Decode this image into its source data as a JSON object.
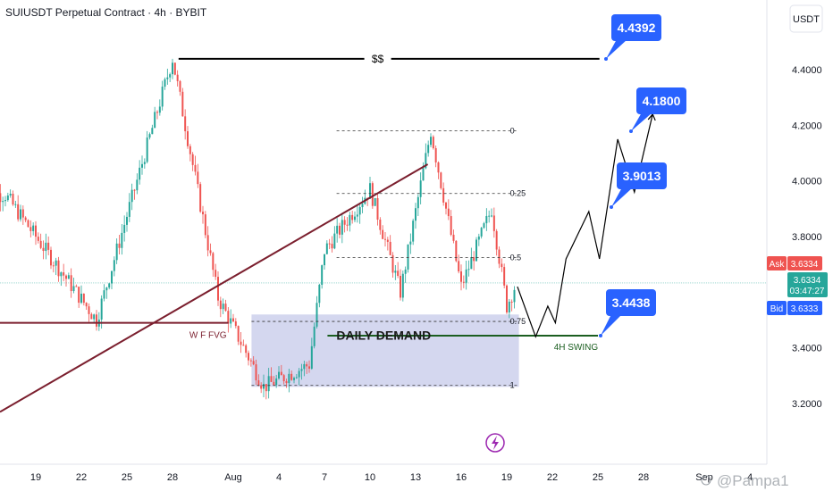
{
  "header": {
    "title": "SUIUSDT Perpetual Contract · 4h · BYBIT",
    "currency": "USDT"
  },
  "watermark": "@Pampa1",
  "colors": {
    "up": "#26a69a",
    "down": "#ef5350",
    "callout": "#2962ff",
    "trendline": "#7b1f2e",
    "demand_zone": "#c5cae9",
    "swing_line": "#1b5e20"
  },
  "chart_data": {
    "type": "candlestick",
    "ylim": [
      3.1,
      4.5
    ],
    "y_ticks": [
      "3.2000",
      "3.4000",
      "3.6000",
      "3.8000",
      "4.0000",
      "4.2000",
      "4.4000"
    ],
    "x_ticks": [
      "19",
      "22",
      "25",
      "28",
      "Aug",
      "4",
      "7",
      "10",
      "13",
      "16",
      "19",
      "22",
      "25",
      "28",
      "Sep",
      "4"
    ],
    "price": {
      "ask_label": "Ask",
      "ask": "3.6334",
      "last": "3.6334",
      "countdown": "03:47:27",
      "bid_label": "Bid",
      "bid": "3.6333"
    },
    "key_points": [
      {
        "date": "Jul 17",
        "price": 3.95
      },
      {
        "date": "Jul 23",
        "price": 3.5
      },
      {
        "date": "Jul 28",
        "price": 4.44
      },
      {
        "date": "Jul 31",
        "price": 3.58
      },
      {
        "date": "Aug 3",
        "price": 3.26
      },
      {
        "date": "Aug 6",
        "price": 3.34
      },
      {
        "date": "Aug 7",
        "price": 3.75
      },
      {
        "date": "Aug 10",
        "price": 3.97
      },
      {
        "date": "Aug 12",
        "price": 3.6
      },
      {
        "date": "Aug 14",
        "price": 4.18
      },
      {
        "date": "Aug 16",
        "price": 3.62
      },
      {
        "date": "Aug 18",
        "price": 3.9
      },
      {
        "date": "Aug 19",
        "price": 3.55
      },
      {
        "date": "Aug 19",
        "price": 3.63
      }
    ],
    "annotations": {
      "liquidity_label": "$$",
      "liquidity_level": 4.4392,
      "fib_levels": [
        {
          "label": "0",
          "price": 4.18
        },
        {
          "label": "0.25",
          "price": 3.955
        },
        {
          "label": "0.5",
          "price": 3.725
        },
        {
          "label": "0.75",
          "price": 3.495
        },
        {
          "label": "1",
          "price": 3.265
        }
      ],
      "demand_zone": {
        "label": "DAILY DEMAND",
        "top": 3.52,
        "bottom": 3.26
      },
      "fvg_label": "W F FVG",
      "fvg_level": 3.49,
      "swing_label": "4H SWING",
      "swing_level": 3.4438,
      "targets": [
        "4.4392",
        "4.1800",
        "3.9013",
        "3.4438"
      ]
    }
  }
}
